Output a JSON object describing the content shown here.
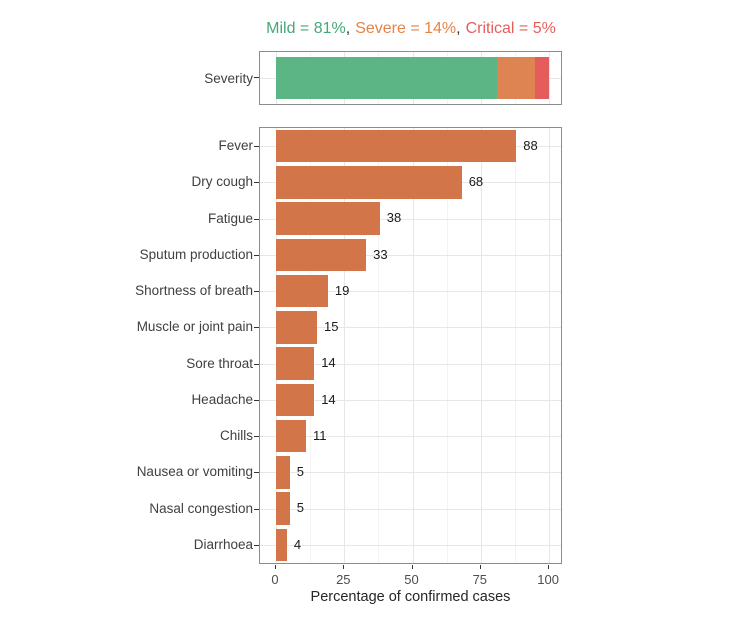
{
  "title": {
    "segments": [
      {
        "text": "Mild = 81%",
        "color": "#45a878"
      },
      {
        "text": "Severe = 14%",
        "color": "#e68345"
      },
      {
        "text": "Critical = 5%",
        "color": "#e45f5c"
      }
    ],
    "separator": ","
  },
  "chart_data": [
    {
      "type": "bar",
      "subtype": "stacked-horizontal",
      "categories": [
        "Severity"
      ],
      "series": [
        {
          "name": "Mild",
          "values": [
            81
          ],
          "color": "#5cb584"
        },
        {
          "name": "Severe",
          "values": [
            14
          ],
          "color": "#de8452"
        },
        {
          "name": "Critical",
          "values": [
            5
          ],
          "color": "#e45c5c"
        }
      ],
      "xlim": [
        0,
        100
      ],
      "grid": true,
      "legend_position": "none"
    },
    {
      "type": "bar",
      "subtype": "horizontal",
      "categories": [
        "Fever",
        "Dry cough",
        "Fatigue",
        "Sputum production",
        "Shortness of breath",
        "Muscle or joint pain",
        "Sore throat",
        "Headache",
        "Chills",
        "Nausea or vomiting",
        "Nasal congestion",
        "Diarrhoea"
      ],
      "values": [
        88,
        68,
        38,
        33,
        19,
        15,
        14,
        14,
        11,
        5,
        5,
        4
      ],
      "bar_color": "#d2764a",
      "xlabel": "Percentage of confirmed cases",
      "x_ticks": [
        0,
        25,
        50,
        75,
        100
      ],
      "xlim": [
        0,
        100
      ],
      "grid": true,
      "value_labels": true
    }
  ]
}
